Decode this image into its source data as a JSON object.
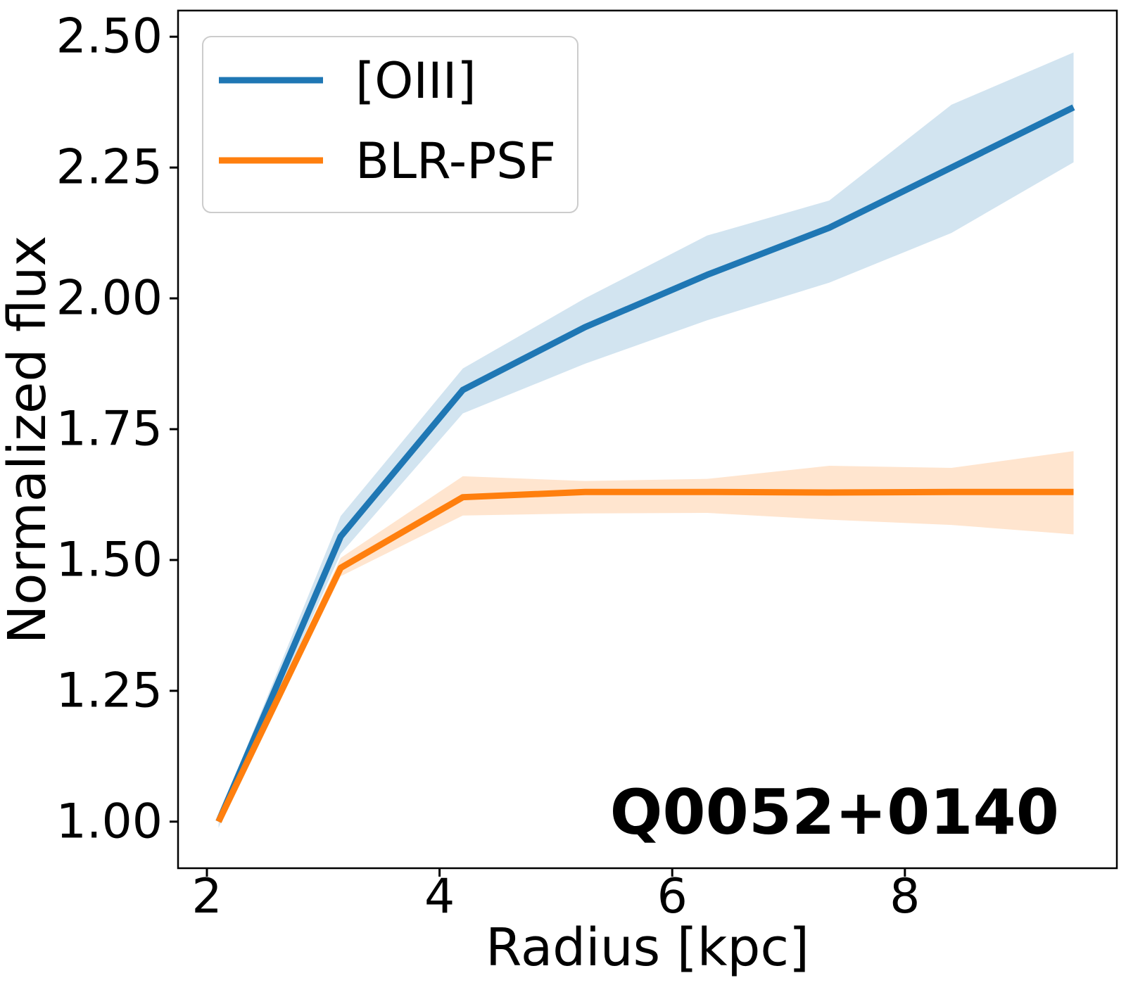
{
  "chart_data": {
    "type": "line",
    "title": "",
    "xlabel": "Radius [kpc]",
    "ylabel": "Normalized flux",
    "annotation": "Q0052+0140",
    "grid": false,
    "legend_position": "upper left",
    "xlim": [
      1.752,
      9.822
    ],
    "ylim": [
      0.911,
      2.55
    ],
    "xticks": {
      "values": [
        2,
        4,
        6,
        8
      ],
      "labels": [
        "2",
        "4",
        "6",
        "8"
      ]
    },
    "yticks": {
      "values": [
        1.0,
        1.25,
        1.5,
        1.75,
        2.0,
        2.25,
        2.5
      ],
      "labels": [
        "1.00",
        "1.25",
        "1.50",
        "1.75",
        "2.00",
        "2.25",
        "2.50"
      ]
    },
    "x": [
      2.1,
      3.15,
      4.2,
      5.25,
      6.3,
      7.35,
      8.4,
      9.45
    ],
    "series": [
      {
        "name": "[OIII]",
        "color": "#1f77b4",
        "band_color": "#d2e4f0",
        "values": [
          1.0,
          1.545,
          1.825,
          1.945,
          2.045,
          2.135,
          2.25,
          2.365
        ],
        "band_upper": [
          1.01,
          1.584,
          1.866,
          2.0,
          2.12,
          2.187,
          2.37,
          2.47
        ],
        "band_lower": [
          0.988,
          1.512,
          1.78,
          1.875,
          1.958,
          2.03,
          2.125,
          2.26
        ]
      },
      {
        "name": "BLR-PSF",
        "color": "#ff7f0e",
        "band_color": "#ffe5cf",
        "values": [
          1.0,
          1.485,
          1.62,
          1.63,
          1.63,
          1.629,
          1.63,
          1.63
        ],
        "band_upper": [
          1.005,
          1.504,
          1.66,
          1.651,
          1.655,
          1.68,
          1.676,
          1.708
        ],
        "band_lower": [
          0.995,
          1.469,
          1.585,
          1.589,
          1.59,
          1.577,
          1.567,
          1.549
        ]
      }
    ]
  }
}
